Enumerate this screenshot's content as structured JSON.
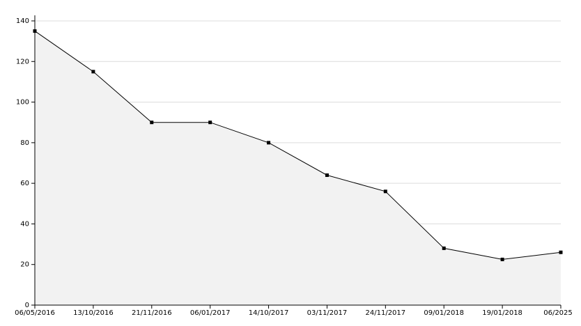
{
  "chart_data": {
    "type": "area",
    "categories": [
      "06/05/2016",
      "13/10/2016",
      "21/11/2016",
      "06/01/2017",
      "14/10/2017",
      "03/11/2017",
      "24/11/2017",
      "09/01/2018",
      "19/01/2018",
      "06/2025"
    ],
    "values": [
      135,
      115,
      90,
      90,
      80,
      64,
      56,
      28,
      22.5,
      26
    ],
    "color": "#000000",
    "fill": "#f2f2f2",
    "ylim": [
      0,
      140
    ],
    "yticks": [
      0,
      20,
      40,
      60,
      80,
      100,
      120,
      140
    ],
    "grid": true
  }
}
